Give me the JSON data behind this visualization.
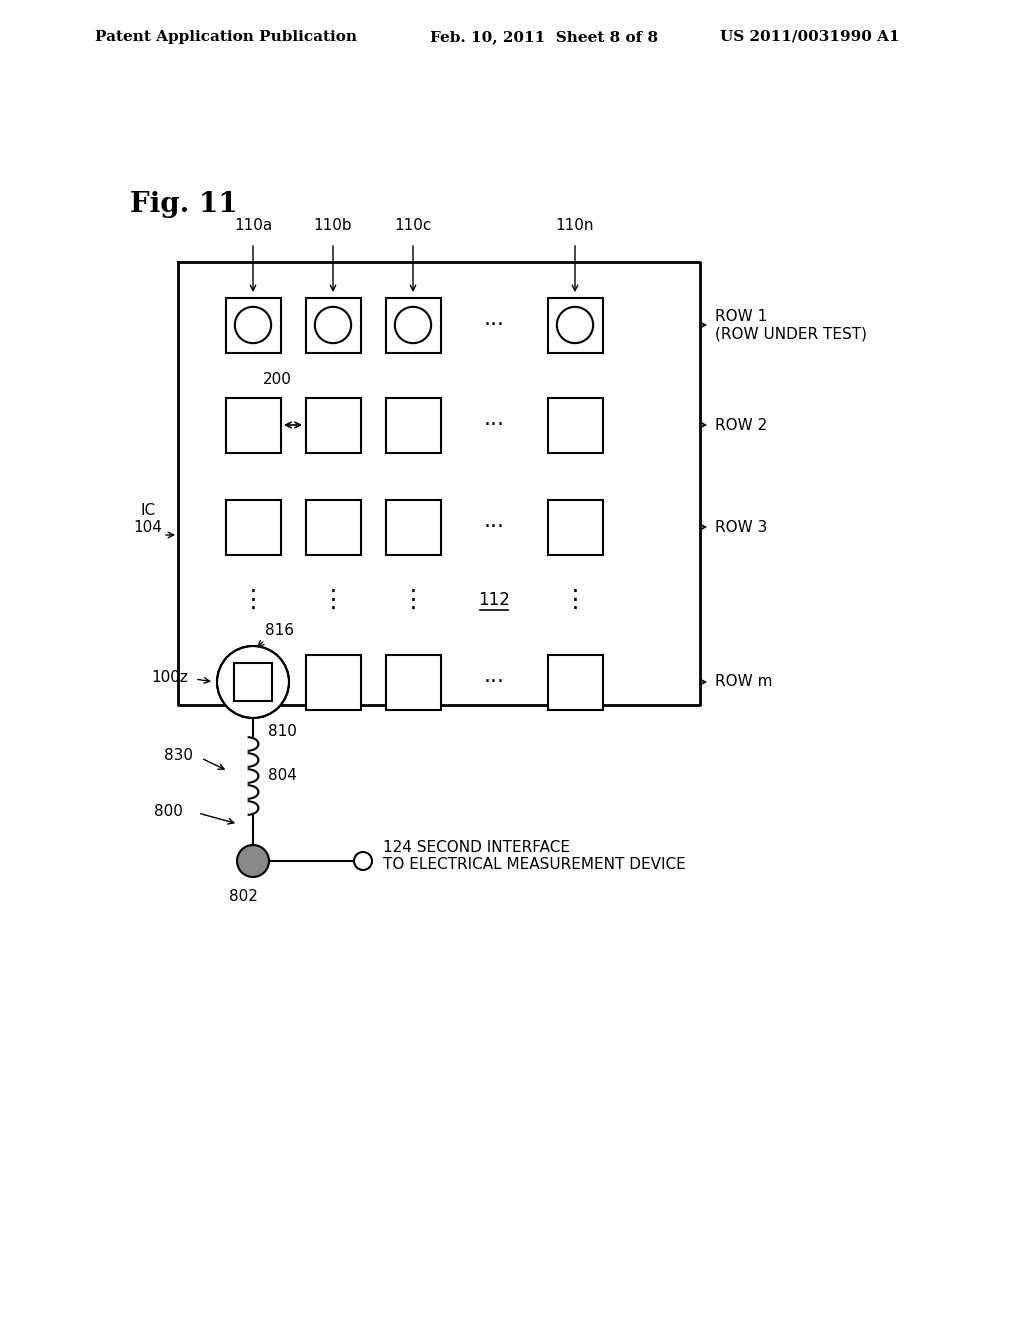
{
  "bg_color": "#ffffff",
  "fig_label": "Fig. 11",
  "header_left": "Patent Application Publication",
  "header_mid": "Feb. 10, 2011  Sheet 8 of 8",
  "header_right": "US 2011/0031990 A1",
  "col_labels": [
    "110a",
    "110b",
    "110c",
    "110n"
  ],
  "row_labels": [
    "ROW 1\n(ROW UNDER TEST)",
    "ROW 2",
    "ROW 3",
    "ROW m"
  ],
  "ic_label": "IC\n104",
  "label_200": "200",
  "label_816": "816",
  "label_810": "810",
  "label_804": "804",
  "label_830": "830",
  "label_800": "800",
  "label_802": "802",
  "label_100z": "100z",
  "label_112": "112",
  "annotation_124": "124 SECOND INTERFACE\nTO ELECTRICAL MEASUREMENT DEVICE"
}
